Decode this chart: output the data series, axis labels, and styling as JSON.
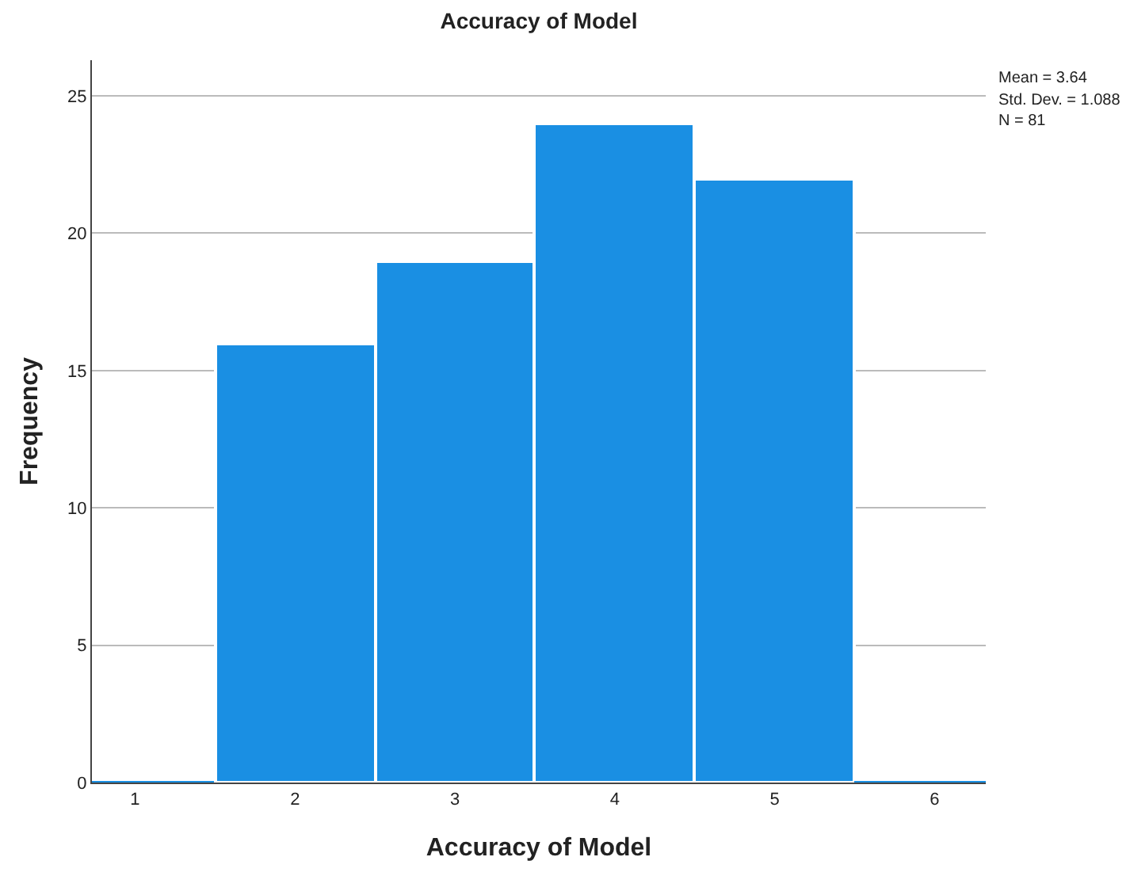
{
  "chart_data": {
    "type": "histogram",
    "title": "Accuracy of Model",
    "xlabel": "Accuracy of Model",
    "ylabel": "Frequency",
    "bins": [
      0.5,
      1.5,
      2.5,
      3.5,
      4.5,
      5.5,
      6.5
    ],
    "values": [
      0,
      16,
      19,
      24,
      22,
      0
    ],
    "color": "#1a8fe3",
    "xlim": [
      0.73,
      6.32
    ],
    "xticks": [
      1,
      2,
      3,
      4,
      5,
      6
    ],
    "ylim": [
      0,
      26.3
    ],
    "yticks": [
      0,
      5,
      10,
      15,
      20,
      25
    ],
    "grid": "y",
    "annotations": [
      "Mean = 3.64",
      "Std. Dev. = 1.088",
      "N = 81"
    ]
  }
}
